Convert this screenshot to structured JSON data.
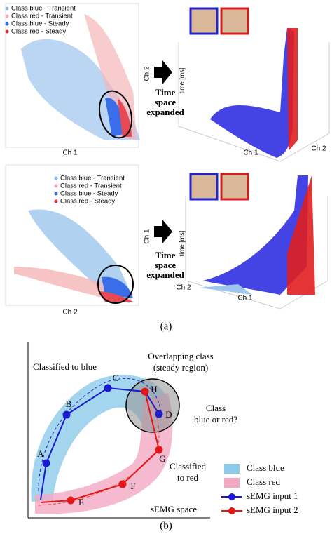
{
  "panel_a": {
    "rows": [
      {
        "legend": [
          "Class blue - Transient",
          "Class red - Transient",
          "Class blue - Steady",
          "Class red - Steady"
        ],
        "scatter_x_label": "Ch 1",
        "scatter_y_label": "Ch 2",
        "arrow_label": [
          "Time",
          "space",
          "expanded"
        ],
        "plot3d_z_label": "time [ms]",
        "plot3d_x_label": "Ch 1",
        "plot3d_y_label": "Ch 2"
      },
      {
        "legend": [
          "Class blue - Transient",
          "Class red - Transient",
          "Class blue - Steady",
          "Class red - Steady"
        ],
        "scatter_x_label": "Ch 2",
        "scatter_y_label": "Ch 1",
        "arrow_label": [
          "Time",
          "space",
          "expanded"
        ],
        "plot3d_z_label": "time [ms]",
        "plot3d_x_label": "Ch 1",
        "plot3d_y_label": "Ch 2"
      }
    ],
    "label": "(a)"
  },
  "panel_b": {
    "overlap_label": [
      "Overlapping class",
      "(steady region)"
    ],
    "classified_blue": "Classified to blue",
    "question": [
      "Class",
      "blue or red?"
    ],
    "classified_red": [
      "Classified",
      "to red"
    ],
    "space_label": "sEMG space",
    "points": [
      "A",
      "B",
      "C",
      "D",
      "E",
      "F",
      "G",
      "H"
    ],
    "legend": [
      "Class blue",
      "Class red",
      "sEMG input 1",
      "sEMG input 2"
    ],
    "label": "(b)"
  }
}
